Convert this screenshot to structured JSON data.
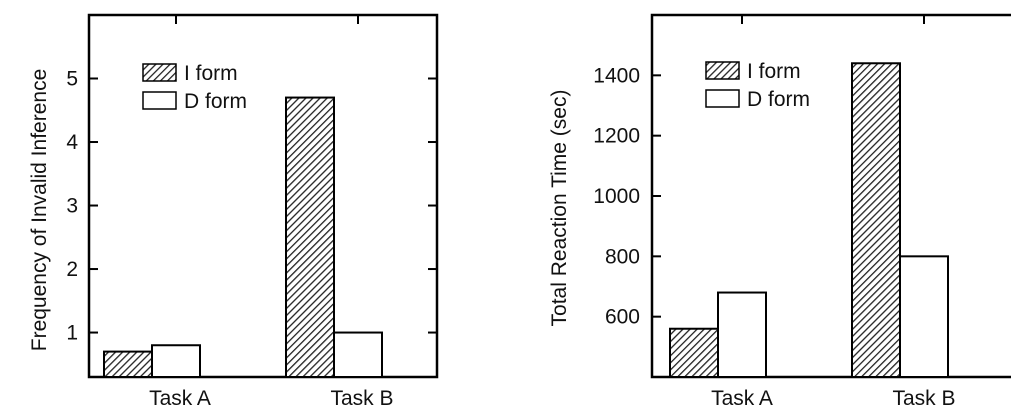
{
  "chart_data": [
    {
      "type": "bar",
      "ylabel": "Frequency of Invalid Inference",
      "categories": [
        "Task A",
        "Task B"
      ],
      "series": [
        {
          "name": "I form",
          "values": [
            0.7,
            4.7
          ]
        },
        {
          "name": "D form",
          "values": [
            0.8,
            1.0
          ]
        }
      ],
      "ylim": [
        0.3,
        6
      ],
      "yticks": [
        1,
        2,
        3,
        4,
        5
      ],
      "legend": "top-left",
      "grid": false
    },
    {
      "type": "bar",
      "ylabel": "Total Reaction Time (sec)",
      "categories": [
        "Task A",
        "Task B"
      ],
      "series": [
        {
          "name": "I form",
          "values": [
            560,
            1440
          ]
        },
        {
          "name": "D form",
          "values": [
            680,
            800
          ]
        }
      ],
      "ylim": [
        400,
        1600
      ],
      "yticks": [
        600,
        800,
        1000,
        1200,
        1400
      ],
      "legend": "top-left",
      "grid": false
    }
  ],
  "colors": {
    "hatch": "#222222",
    "outline": "#000000",
    "plain_fill": "#ffffff"
  }
}
